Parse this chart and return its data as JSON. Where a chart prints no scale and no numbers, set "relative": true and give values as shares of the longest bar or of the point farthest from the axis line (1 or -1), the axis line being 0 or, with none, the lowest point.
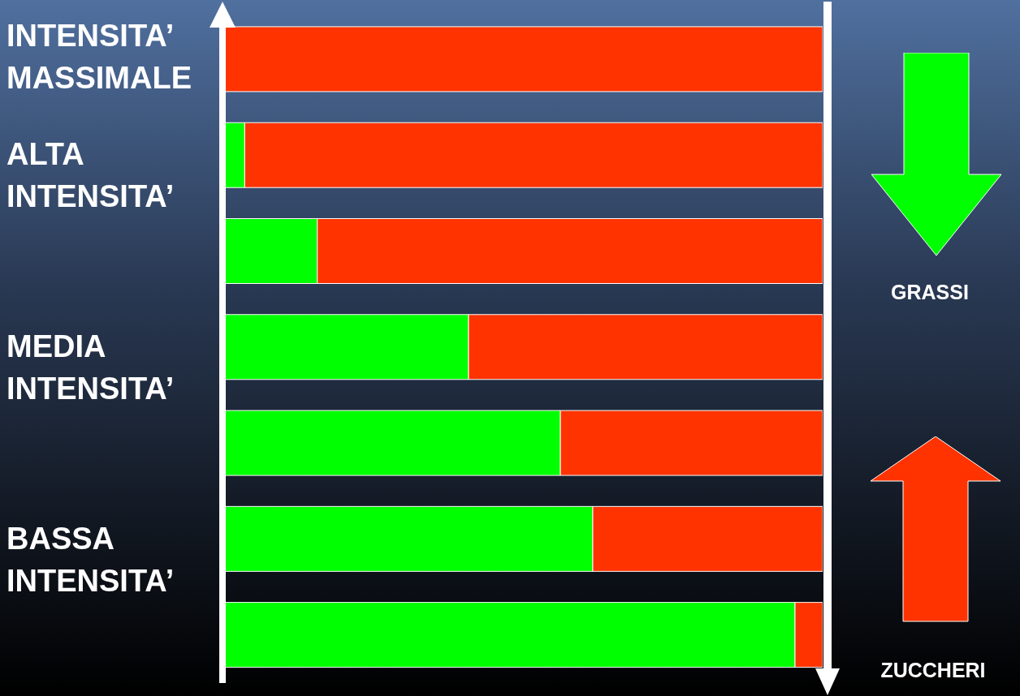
{
  "chart_data": {
    "type": "bar",
    "orientation": "horizontal",
    "stacked": true,
    "relative": true,
    "grid": false,
    "legend": "right",
    "categories": [
      "INTENSITA’ MASSIMALE",
      "ALTA INTENSITA’",
      null,
      "MEDIA INTENSITA’",
      null,
      "BASSA INTENSITA’",
      null
    ],
    "series": [
      {
        "name": "GRASSI",
        "color": "#00ff00",
        "values": [
          0,
          0.037,
          0.158,
          0.41,
          0.563,
          0.617,
          0.954
        ]
      },
      {
        "name": "ZUCCHERI",
        "color": "#ff3300",
        "values": [
          1,
          0.963,
          0.842,
          0.59,
          0.437,
          0.383,
          0.046
        ]
      }
    ]
  }
}
